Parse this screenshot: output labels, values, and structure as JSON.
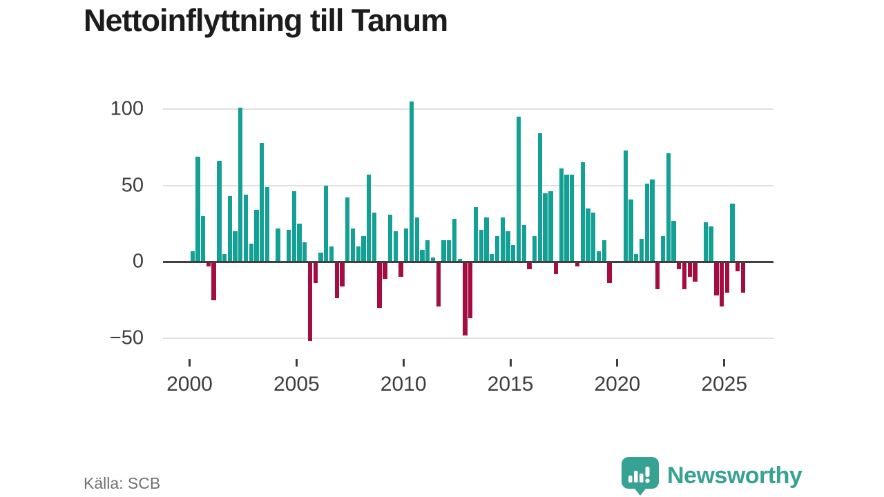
{
  "page": {
    "background": "#ffffff"
  },
  "header": {
    "title": "Nettoinflyttning till Tanum"
  },
  "footer": {
    "source": "Källa: SCB",
    "brand_name": "Newsworthy",
    "brand_color": "#36a294"
  },
  "chart_data": {
    "type": "bar",
    "title": "Nettoinflyttning till Tanum",
    "frequency": "quarterly",
    "x_start_year": 2000,
    "x_tick_labels": [
      "2000",
      "2005",
      "2010",
      "2015",
      "2020",
      "2025"
    ],
    "y_tick_values": [
      100,
      50,
      0,
      -50
    ],
    "y_tick_labels": [
      "100",
      "50",
      "0",
      "−50"
    ],
    "gridline_values": [
      100,
      50,
      -50
    ],
    "ylim": [
      -60,
      112
    ],
    "legend": "none",
    "grid": "horizontal-only",
    "colors": {
      "positive": "#13a095",
      "negative": "#a50d42"
    },
    "series": [
      {
        "name": "Nettoinflyttning",
        "values_by_year": [
          [
            7,
            69,
            30,
            -3
          ],
          [
            -25,
            66,
            5,
            43
          ],
          [
            20,
            101,
            44,
            12
          ],
          [
            34,
            78,
            49,
            0
          ],
          [
            22,
            0,
            21,
            46
          ],
          [
            25,
            13,
            -52,
            -14
          ],
          [
            6,
            50,
            10,
            -24
          ],
          [
            -16,
            42,
            22,
            10
          ],
          [
            17,
            57,
            32,
            -30
          ],
          [
            -11,
            31,
            20,
            -10
          ],
          [
            22,
            105,
            29,
            8
          ],
          [
            14,
            3,
            -29,
            14
          ],
          [
            14,
            28,
            2,
            -48
          ],
          [
            -37,
            36,
            21,
            29
          ],
          [
            5,
            17,
            29,
            20
          ],
          [
            11,
            95,
            24,
            -5
          ],
          [
            17,
            84,
            45,
            46
          ],
          [
            -8,
            61,
            57,
            57
          ],
          [
            -3,
            65,
            35,
            32
          ],
          [
            7,
            14,
            -14,
            0
          ],
          [
            0,
            73,
            41,
            5
          ],
          [
            15,
            51,
            54,
            -18
          ],
          [
            17,
            71,
            27,
            -5
          ],
          [
            -18,
            -10,
            -13,
            0
          ],
          [
            26,
            23,
            -22,
            -29
          ],
          [
            -20,
            38,
            -6,
            -20
          ]
        ]
      }
    ]
  }
}
